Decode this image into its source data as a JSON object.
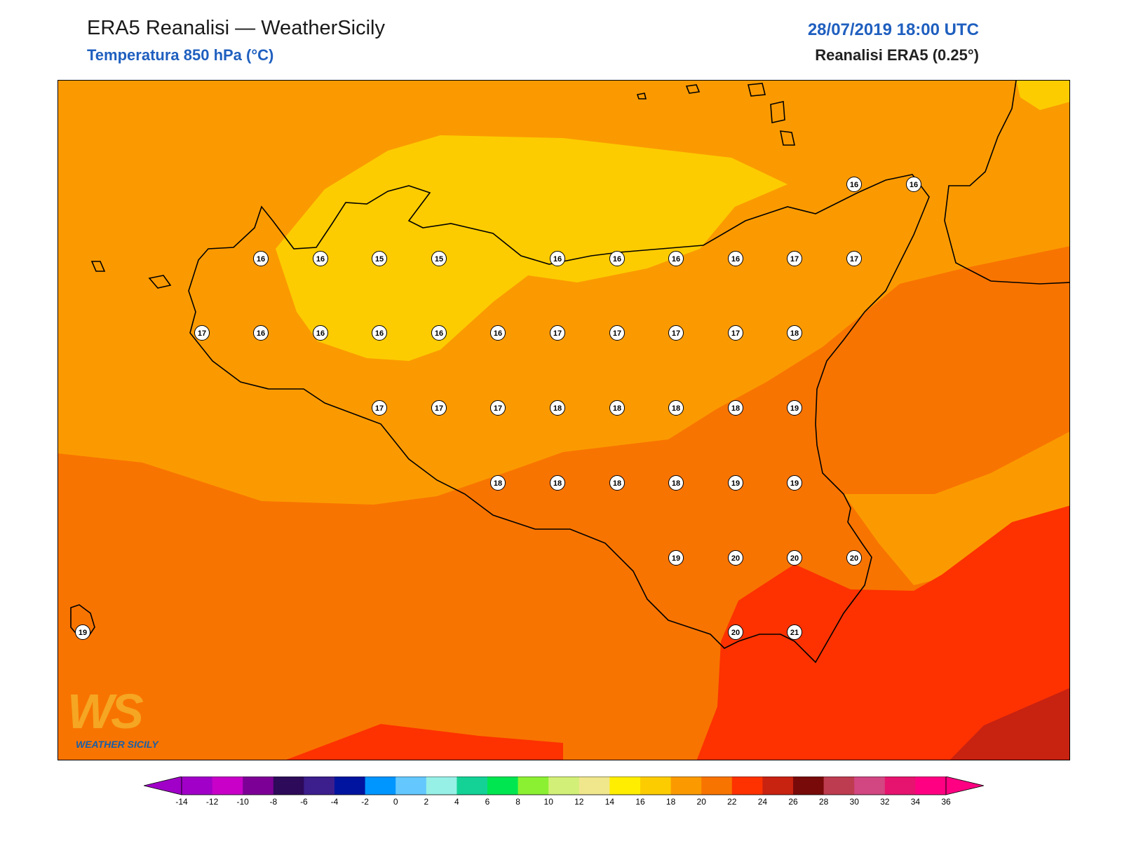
{
  "header": {
    "title": "ERA5 Reanalisi — WeatherSicily",
    "subtitle": "Temperatura 850 hPa (°C)",
    "datetime": "28/07/2019 18:00 UTC",
    "source": "Reanalisi ERA5 (0.25°)"
  },
  "logo": {
    "letters": "WS",
    "text": "WEATHER SICILY"
  },
  "colors": {
    "t14": "#ffee00",
    "t16": "#fccc00",
    "t18": "#fb9a00",
    "t20": "#f87400",
    "t22": "#fd3200",
    "t24": "#c82211",
    "coast": "#000000"
  },
  "station_values": [
    {
      "row": 1,
      "values": [
        16,
        16,
        15,
        15,
        16,
        16,
        16,
        16,
        17,
        17
      ]
    },
    {
      "row": 2,
      "values": [
        17,
        16,
        16,
        16,
        16,
        16,
        17,
        17,
        17,
        17,
        18
      ]
    },
    {
      "row": 3,
      "values": [
        17,
        17,
        17,
        18,
        18,
        18,
        18,
        19
      ]
    },
    {
      "row": 4,
      "values": [
        18,
        18,
        18,
        18,
        19,
        19
      ]
    },
    {
      "row": 5,
      "values": [
        19,
        20,
        20,
        20
      ]
    },
    {
      "row": 6,
      "values": [
        20,
        21
      ]
    },
    {
      "row": 0,
      "values": [
        16,
        16
      ]
    },
    {
      "row": 7,
      "values": [
        19
      ]
    }
  ],
  "colorbar": {
    "ticks": [
      "-14",
      "-12",
      "-10",
      "-8",
      "-6",
      "-4",
      "-2",
      "0",
      "2",
      "4",
      "6",
      "8",
      "10",
      "12",
      "14",
      "16",
      "18",
      "20",
      "22",
      "24",
      "26",
      "28",
      "30",
      "32",
      "34",
      "36"
    ],
    "colors": [
      "#a000c8",
      "#c800c8",
      "#7d0096",
      "#2d0a5a",
      "#3c1e8c",
      "#0014a0",
      "#0096ff",
      "#64c8ff",
      "#96f0e6",
      "#14d296",
      "#00e650",
      "#8cf032",
      "#d2f078",
      "#f0e68c",
      "#ffee00",
      "#fccc00",
      "#fb9a00",
      "#f87400",
      "#fd3200",
      "#c82211",
      "#780a0a",
      "#be3c50",
      "#d24682",
      "#e6146e",
      "#ff0082"
    ]
  }
}
